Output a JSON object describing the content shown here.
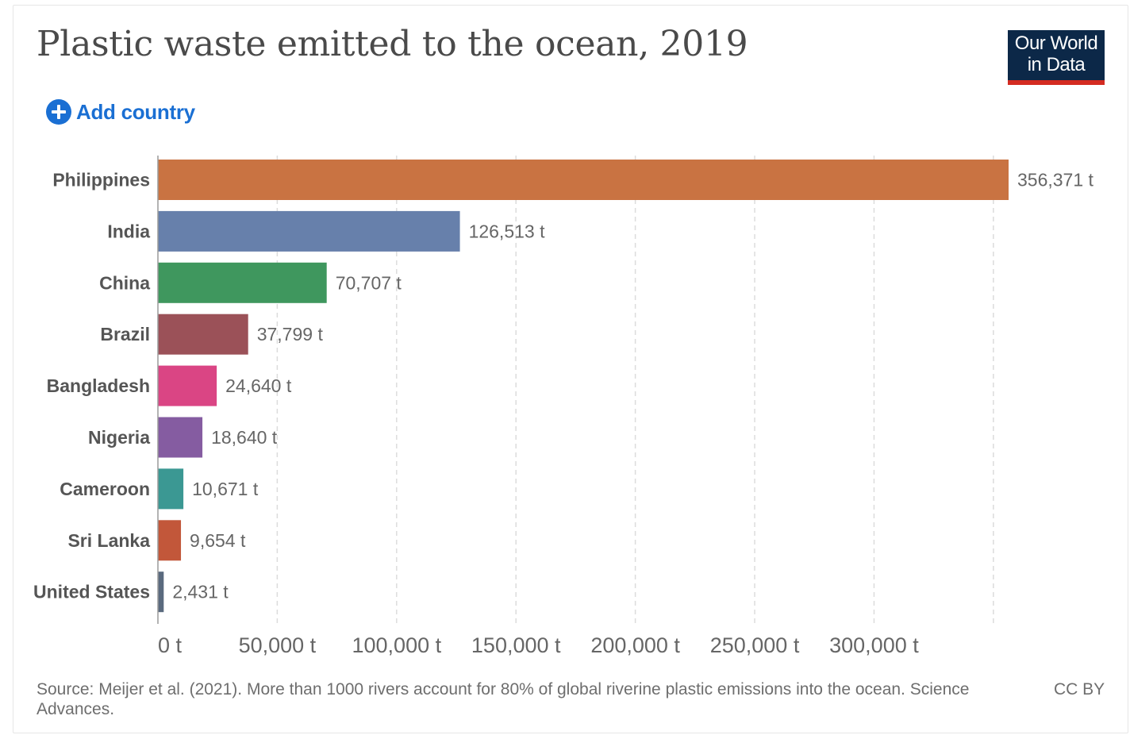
{
  "header": {
    "title": "Plastic waste emitted to the ocean, 2019",
    "logo_line1": "Our World",
    "logo_line2": "in Data"
  },
  "controls": {
    "add_country_label": "Add country"
  },
  "chart_data": {
    "type": "bar",
    "orientation": "horizontal",
    "title": "Plastic waste emitted to the ocean, 2019",
    "unit": "t",
    "xlim": [
      0,
      356371
    ],
    "x_ticks": [
      0,
      50000,
      100000,
      150000,
      200000,
      250000,
      300000
    ],
    "x_tick_labels": [
      "0 t",
      "50,000 t",
      "100,000 t",
      "150,000 t",
      "200,000 t",
      "250,000 t",
      "300,000 t"
    ],
    "grid": "vertical-dashed",
    "categories": [
      "Philippines",
      "India",
      "China",
      "Brazil",
      "Bangladesh",
      "Nigeria",
      "Cameroon",
      "Sri Lanka",
      "United States"
    ],
    "values": [
      356371,
      126513,
      70707,
      37799,
      24640,
      18640,
      10671,
      9654,
      2431
    ],
    "value_labels": [
      "356,371 t",
      "126,513 t",
      "70,707 t",
      "37,799 t",
      "24,640 t",
      "18,640 t",
      "10,671 t",
      "9,654 t",
      "2,431 t"
    ],
    "colors": [
      "#c97342",
      "#6780ab",
      "#3f975e",
      "#9b5158",
      "#da4584",
      "#855ca1",
      "#3b9893",
      "#c2573a",
      "#5a6a7e"
    ]
  },
  "footer": {
    "source": "Source: Meijer et al. (2021). More than 1000 rivers account for 80% of global riverine plastic emissions into the ocean. Science Advances.",
    "license": "CC BY"
  },
  "colors": {
    "accent_blue": "#1a6fd3",
    "logo_navy": "#0c2848",
    "logo_red": "#d42b21"
  }
}
